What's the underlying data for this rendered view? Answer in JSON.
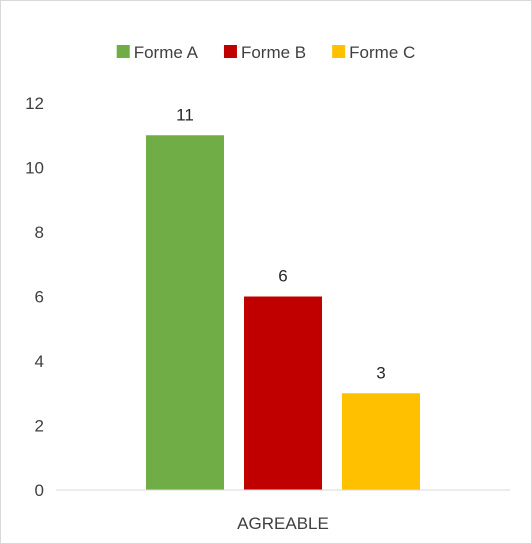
{
  "chart_data": {
    "type": "bar",
    "categories": [
      "AGREABLE"
    ],
    "series": [
      {
        "name": "Forme A",
        "values": [
          11
        ],
        "color": "#70ad47"
      },
      {
        "name": "Forme B",
        "values": [
          6
        ],
        "color": "#c00000"
      },
      {
        "name": "Forme C",
        "values": [
          3
        ],
        "color": "#ffc000"
      }
    ],
    "ylim": [
      0,
      12
    ],
    "yticks": [
      0,
      2,
      4,
      6,
      8,
      10,
      12
    ],
    "grid": false,
    "legend": "top-center",
    "data_labels": true
  }
}
